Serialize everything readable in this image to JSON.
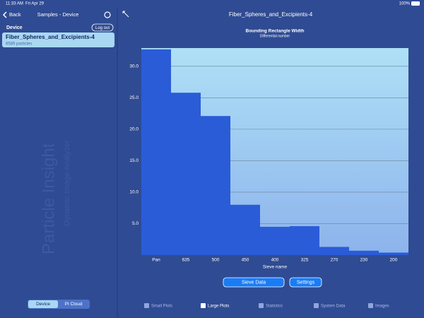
{
  "status_bar": {
    "time": "11:33 AM",
    "date": "Fri Apr 29",
    "battery": "100%"
  },
  "sidebar": {
    "back": "Back",
    "title": "Samples - Device",
    "section": "Device",
    "logout": "Log out",
    "item": {
      "name": "Fiber_Spheres_and_Excipients-4",
      "detail": "6589 particles"
    },
    "watermark": [
      "Particle Insight",
      "Dynamic Image Analyzer"
    ],
    "segments": [
      "Device",
      "PI Cloud"
    ]
  },
  "header": {
    "title": "Fiber_Spheres_and_Excipients-4"
  },
  "chart_data": {
    "type": "bar",
    "title": "Bounding Rectangle Width",
    "subtitle": "Differential number",
    "x_label": "Sieve name",
    "categories": [
      "Pan",
      "635",
      "500",
      "450",
      "400",
      "325",
      "270",
      "230",
      "200"
    ],
    "values": [
      32.7,
      25.8,
      22.1,
      8.0,
      4.5,
      4.6,
      1.3,
      0.7,
      0.4
    ],
    "color": "#2a5cd8",
    "ylim": [
      0,
      32.9
    ],
    "yticks": [
      {
        "value": 5,
        "label": "5.0"
      },
      {
        "value": 10,
        "label": "10.0"
      },
      {
        "value": 15,
        "label": "15.0"
      },
      {
        "value": 20,
        "label": "20.0"
      },
      {
        "value": 25,
        "label": "25.0"
      },
      {
        "value": 30,
        "label": "30.0"
      }
    ],
    "grid": true
  },
  "buttons": [
    "Sieve Data",
    "Settings"
  ],
  "tabs": [
    "Small Plots",
    "Large Plots",
    "Statistics",
    "System Data",
    "Images"
  ]
}
